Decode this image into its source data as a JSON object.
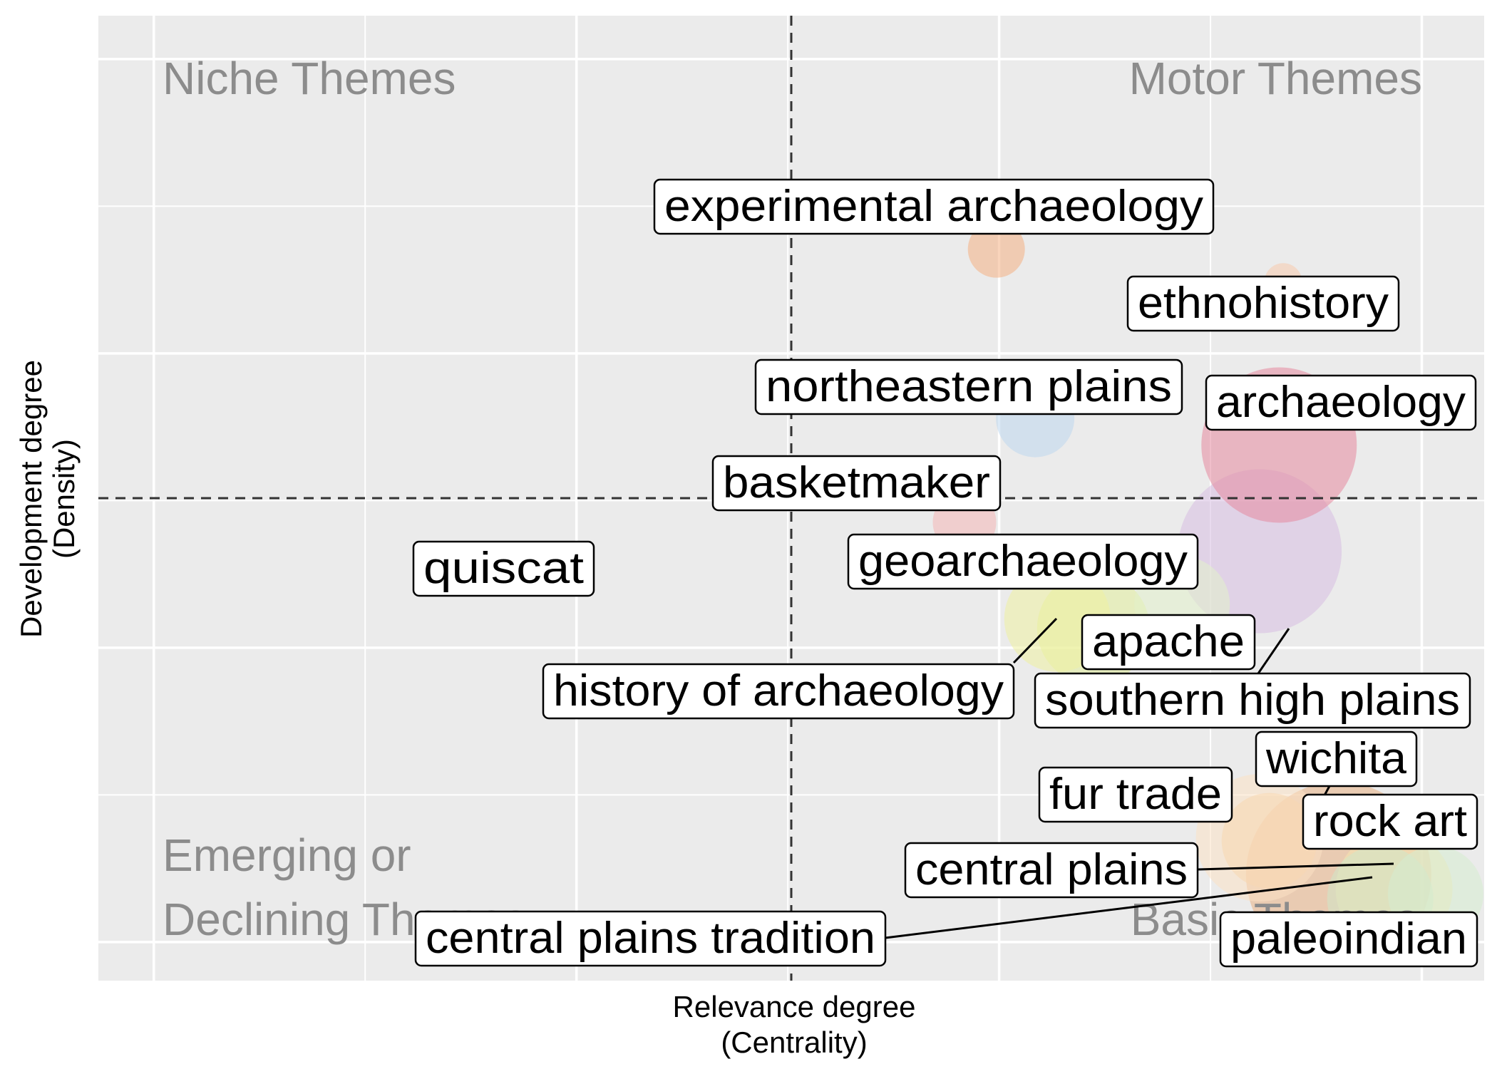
{
  "chart_data": {
    "type": "scatter",
    "xlabel": [
      "Relevance degree",
      "(Centrality)"
    ],
    "ylabel": [
      "Development degree",
      "(Density)"
    ],
    "quadrants": {
      "top_left": [
        "Niche Themes"
      ],
      "top_right": [
        "Motor Themes"
      ],
      "bottom_left": [
        "Emerging or",
        "Declining Themes"
      ],
      "bottom_right": [
        "Basic Themes"
      ]
    },
    "grid": true,
    "x_ticks_shown": false,
    "y_ticks_shown": false,
    "reference_lines": {
      "x": 0.5,
      "y": 0.5,
      "style": "dashed"
    },
    "points": [
      {
        "label": "experimental archaeology",
        "x": 0.648,
        "y": 0.758,
        "size": 0.12,
        "color": "#f4b183"
      },
      {
        "label": "ethnohistory",
        "x": 0.855,
        "y": 0.724,
        "size": 0.03,
        "color": "#f8cbad"
      },
      {
        "label": "northeastern plains",
        "x": 0.676,
        "y": 0.583,
        "size": 0.22,
        "color": "#bdd7ee"
      },
      {
        "label": "archaeology",
        "x": 0.852,
        "y": 0.555,
        "size": 0.58,
        "color": "#e6899f"
      },
      {
        "label": "basketmaker",
        "x": 0.625,
        "y": 0.475,
        "size": 0.15,
        "color": "#f4b6b6"
      },
      {
        "label": "geoarchaeology",
        "x": 0.838,
        "y": 0.445,
        "size": 0.62,
        "color": "#d7bde2"
      },
      {
        "label": "apache",
        "x": 0.692,
        "y": 0.375,
        "size": 0.35,
        "color": "#eef0a0"
      },
      {
        "label": "history of archaeology",
        "x": 0.718,
        "y": 0.365,
        "size": 0.38,
        "color": "#e2ef9a"
      },
      {
        "label": "southern high plains",
        "x": 0.782,
        "y": 0.39,
        "size": 0.3,
        "color": "#e2f0cb"
      },
      {
        "label": "quiscat",
        "x": 0.29,
        "y": 0.42,
        "size": 0.0,
        "color": "#cccccc"
      },
      {
        "label": "wichita",
        "x": 0.838,
        "y": 0.148,
        "size": 0.45,
        "color": "#fbe2c5"
      },
      {
        "label": "fur trade",
        "x": 0.845,
        "y": 0.145,
        "size": 0.3,
        "color": "#f8d7b0"
      },
      {
        "label": "rock art",
        "x": 0.895,
        "y": 0.11,
        "size": 0.72,
        "color": "#e8b083"
      },
      {
        "label": "central plains",
        "x": 0.935,
        "y": 0.095,
        "size": 0.4,
        "color": "#f5e6b0"
      },
      {
        "label": "central plains tradition",
        "x": 0.925,
        "y": 0.085,
        "size": 0.35,
        "color": "#cfe8c8"
      },
      {
        "label": "paleoindian",
        "x": 0.965,
        "y": 0.09,
        "size": 0.3,
        "color": "#d6ecd0"
      }
    ]
  }
}
